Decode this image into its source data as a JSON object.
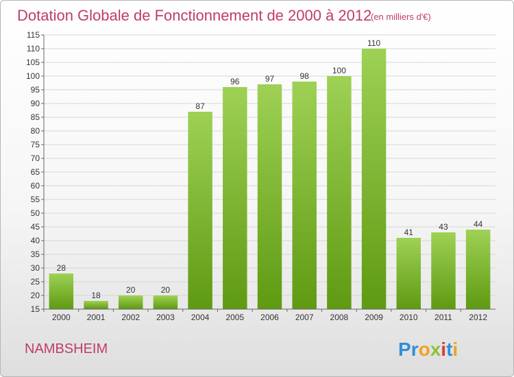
{
  "chart_data": {
    "type": "bar",
    "title": "Dotation Globale de Fonctionnement de 2000 à 2012",
    "subtitle": "(en milliers d'€)",
    "categories": [
      "2000",
      "2001",
      "2002",
      "2003",
      "2004",
      "2005",
      "2006",
      "2007",
      "2008",
      "2009",
      "2010",
      "2011",
      "2012"
    ],
    "values": [
      28,
      18,
      20,
      20,
      87,
      96,
      97,
      98,
      100,
      110,
      41,
      43,
      44
    ],
    "ylim": [
      15,
      115
    ],
    "yticks": [
      15,
      20,
      25,
      30,
      35,
      40,
      45,
      50,
      55,
      60,
      65,
      70,
      75,
      80,
      85,
      90,
      95,
      100,
      105,
      110,
      115
    ],
    "grid": true,
    "bar_color_top": "#9ed155",
    "bar_color_bottom": "#5f9a12"
  },
  "commune": "NAMBSHEIM",
  "brand": {
    "letters": [
      "P",
      "r",
      "o",
      "x",
      "i",
      "t",
      "i"
    ],
    "colors": [
      "#2f8fd6",
      "#2f8fd6",
      "#f0a11f",
      "#8fc13c",
      "#d83d32",
      "#2f8fd6",
      "#f0a11f"
    ]
  }
}
